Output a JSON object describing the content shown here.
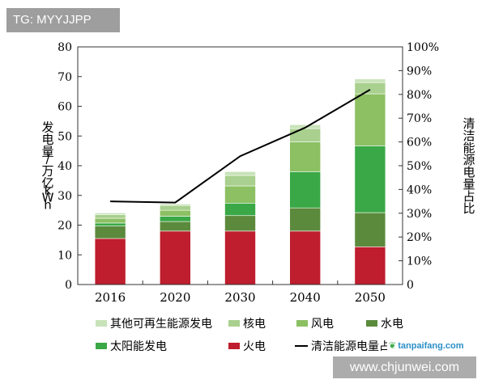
{
  "watermarks": {
    "tag": "TG: MYYJJPP",
    "site": "www.chjunwei.com",
    "logo": "tanpaifang.com"
  },
  "colors": {
    "other_renewable": "#c8e3b9",
    "nuclear": "#a9d08e",
    "wind": "#8cc063",
    "hydro": "#5c8a3c",
    "solar": "#3aa846",
    "thermal": "#be1e2d",
    "line": "#000000"
  },
  "chart_data": {
    "type": "bar",
    "stacked": true,
    "categories": [
      "2016",
      "2020",
      "2030",
      "2040",
      "2050"
    ],
    "ylabel": "发电量/万亿kWh",
    "y2label": "清洁能源电量占比",
    "ylim": [
      0,
      80
    ],
    "y2lim": [
      0,
      100
    ],
    "yticks": [
      0,
      10,
      20,
      30,
      40,
      50,
      60,
      70,
      80
    ],
    "y2ticks": [
      "0",
      "10%",
      "20%",
      "30%",
      "40%",
      "50%",
      "60%",
      "70%",
      "80%",
      "90%",
      "100%"
    ],
    "grid": false,
    "legend_position": "bottom",
    "series": [
      {
        "name": "火电",
        "key": "thermal",
        "values": [
          15.5,
          18,
          18,
          18,
          12.7
        ]
      },
      {
        "name": "水电",
        "key": "hydro",
        "values": [
          4.2,
          3.2,
          5.2,
          7.8,
          11.5
        ]
      },
      {
        "name": "太阳能发电",
        "key": "solar",
        "values": [
          1.0,
          1.8,
          4.2,
          12.2,
          22.5
        ]
      },
      {
        "name": "风电",
        "key": "wind",
        "values": [
          1.6,
          2.0,
          5.8,
          10.0,
          17.5
        ]
      },
      {
        "name": "核电",
        "key": "nuclear",
        "values": [
          1.2,
          1.6,
          3.5,
          4.5,
          3.8
        ]
      },
      {
        "name": "其他可再生能源发电",
        "key": "other_renewable",
        "values": [
          0.6,
          0.5,
          1.3,
          1.3,
          1.2
        ]
      }
    ],
    "line_series": {
      "name": "清洁能源电量占比",
      "axis": "right",
      "values": [
        35,
        34.5,
        54,
        66,
        82
      ]
    },
    "legend": [
      {
        "name": "其他可再生能源发电",
        "key": "other_renewable",
        "kind": "box"
      },
      {
        "name": "核电",
        "key": "nuclear",
        "kind": "box"
      },
      {
        "name": "风电",
        "key": "wind",
        "kind": "box"
      },
      {
        "name": "水电",
        "key": "hydro",
        "kind": "box"
      },
      {
        "name": "太阳能发电",
        "key": "solar",
        "kind": "box"
      },
      {
        "name": "火电",
        "key": "thermal",
        "kind": "box"
      },
      {
        "name": "清洁能源电量占比",
        "key": "line",
        "kind": "line"
      }
    ]
  }
}
